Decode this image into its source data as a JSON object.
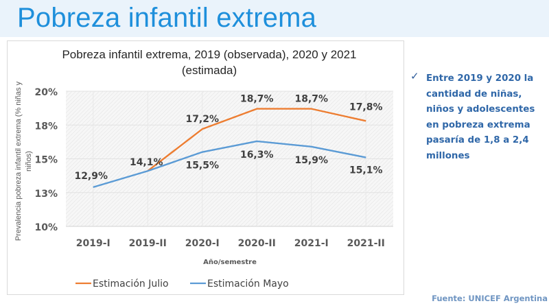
{
  "slide": {
    "title": "Pobreza infantil extrema",
    "bullet_icon": "checkmark-icon",
    "bullet_text": "Entre 2019 y 2020 la cantidad de niñas, niños y adolescentes en pobreza extrema pasaría de 1,8 a 2,4 millones",
    "source": "Fuente: UNICEF Argentina"
  },
  "chart_data": {
    "type": "line",
    "title_line1": "Pobreza infantil extrema, 2019 (observada), 2020 y 2021",
    "title_line2": "(estimada)",
    "xlabel": "Año/semestre",
    "ylabel_line1": "Prevalencia pobreza infantil  extrema (% niñas y",
    "ylabel_line2": "niños)",
    "categories": [
      "2019-I",
      "2019-II",
      "2020-I",
      "2020-II",
      "2021-I",
      "2021-II"
    ],
    "ylim": [
      10,
      20
    ],
    "yticks": [
      10,
      12.5,
      15,
      17.5,
      20
    ],
    "ytick_labels": [
      "10%",
      "13%",
      "15%",
      "18%",
      "20%"
    ],
    "grid": true,
    "legend_position": "bottom-left",
    "series": [
      {
        "name": "Estimación Julio",
        "color": "#ED7D31",
        "values": [
          null,
          14.1,
          17.2,
          18.7,
          18.7,
          17.8
        ],
        "labels": [
          "",
          "14,1%",
          "17,2%",
          "18,7%",
          "18,7%",
          "17,8%"
        ],
        "label_position": "above"
      },
      {
        "name": "Estimación Mayo",
        "color": "#5B9BD5",
        "values": [
          12.9,
          14.1,
          15.5,
          16.3,
          15.9,
          15.1
        ],
        "labels": [
          "12,9%",
          "",
          "15,5%",
          "16,3%",
          "15,9%",
          "15,1%"
        ],
        "label_position": "below"
      }
    ]
  }
}
